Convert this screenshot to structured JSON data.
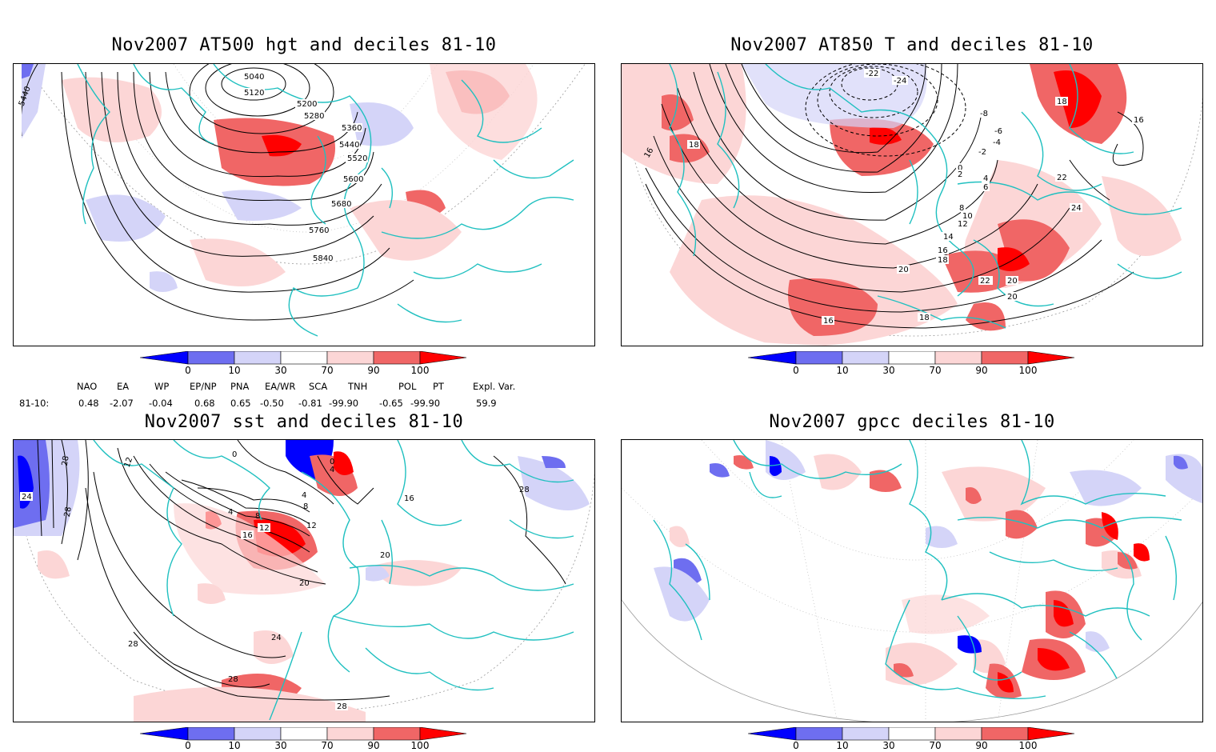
{
  "panels": [
    {
      "id": "p1",
      "title": "Nov2007 AT500 hgt and deciles 81-10",
      "contour_labels": [
        "5040",
        "5120",
        "5200",
        "5280",
        "5360",
        "5440",
        "5520",
        "5600",
        "5680",
        "5760",
        "5840",
        "5440"
      ]
    },
    {
      "id": "p2",
      "title": "Nov2007 AT850 T and deciles 81-10",
      "contour_labels": [
        "-22",
        "-24",
        "-8",
        "-6",
        "-4",
        "-2",
        "0",
        "2",
        "4",
        "6",
        "8",
        "10",
        "12",
        "14",
        "16",
        "18",
        "20",
        "22",
        "24",
        "18",
        "16",
        "18",
        "16",
        "20",
        "22",
        "16",
        "18",
        "20"
      ]
    },
    {
      "id": "p3",
      "title": "Nov2007 sst and deciles 81-10",
      "contour_labels": [
        "28",
        "24",
        "28",
        "12",
        "0",
        "4",
        "8",
        "12",
        "16",
        "20",
        "24",
        "28",
        "28",
        "28",
        "12",
        "16",
        "20",
        "0",
        "4",
        "8",
        "4"
      ]
    },
    {
      "id": "p4",
      "title": "Nov2007 gpcc deciles 81-10",
      "contour_labels": []
    }
  ],
  "colorbar": {
    "labels": [
      "0",
      "10",
      "30",
      "70",
      "90",
      "100"
    ],
    "colors": {
      "strong_blue": "#0000ff",
      "mid_blue": "#6e6ef0",
      "light_blue": "#d4d4f8",
      "white": "#ffffff",
      "light_red": "#fcd6d6",
      "mid_red": "#f06666",
      "strong_red": "#ff0000"
    }
  },
  "indices": {
    "headers": [
      "NAO",
      "EA",
      "WP",
      "EP/NP",
      "PNA",
      "EA/WR",
      "SCA",
      "TNH",
      "POL",
      "PT",
      "Expl. Var."
    ],
    "row_label": "81-10:",
    "values": [
      "0.48",
      "-2.07",
      "-0.04",
      "0.68",
      "0.65",
      "-0.50",
      "-0.81",
      "-99.90",
      "-0.65",
      "-99.90",
      "59.9"
    ]
  },
  "coast_color": "#20c0c0"
}
